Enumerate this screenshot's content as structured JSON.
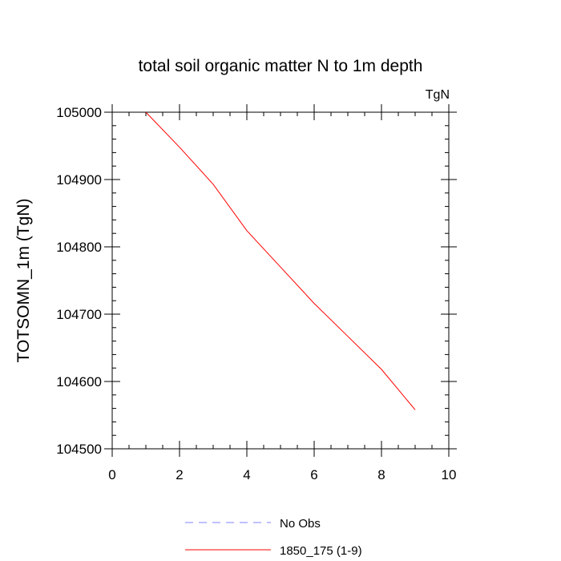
{
  "chart_data": {
    "type": "line",
    "title": "total soil organic matter N to 1m depth",
    "units_label": "TgN",
    "ylabel": "TOTSOMN_1m  (TgN)",
    "xlabel": "",
    "xlim": [
      0,
      10
    ],
    "ylim": [
      104500,
      105000
    ],
    "x_ticks": [
      0,
      2,
      4,
      6,
      8,
      10
    ],
    "y_ticks": [
      104500,
      104600,
      104700,
      104800,
      104900,
      105000
    ],
    "x_minor_step": 0.5,
    "y_minor_step": 20,
    "grid": false,
    "legend_position": "bottom",
    "series": [
      {
        "name": "No Obs",
        "color": "#8080ff",
        "dash": "dashed",
        "x": [],
        "y": []
      },
      {
        "name": "1850_175 (1-9)",
        "color": "#ff0000",
        "dash": "solid",
        "x": [
          1,
          2,
          3,
          4,
          5,
          6,
          7,
          8,
          9
        ],
        "y": [
          105000,
          104948,
          104893,
          104824,
          104770,
          104716,
          104667,
          104618,
          104558
        ]
      }
    ]
  }
}
